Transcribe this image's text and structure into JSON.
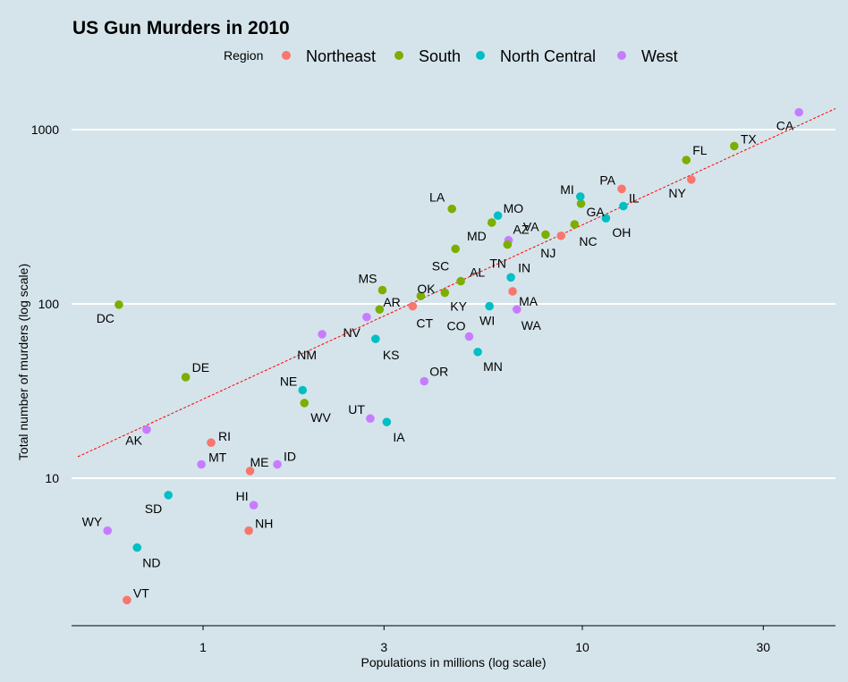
{
  "chart_data": {
    "type": "scatter",
    "title": "US Gun Murders in 2010",
    "xlabel": "Populations in millions (log scale)",
    "ylabel": "Total number of murders (log scale)",
    "x_scale": "log10",
    "y_scale": "log10",
    "xlim": [
      0.43,
      47
    ],
    "ylim": [
      1.5,
      2200
    ],
    "x_ticks": [
      {
        "value": 1,
        "label": "1"
      },
      {
        "value": 3,
        "label": "3"
      },
      {
        "value": 10,
        "label": "10"
      },
      {
        "value": 30,
        "label": "30"
      }
    ],
    "y_ticks": [
      {
        "value": 10,
        "label": "10"
      },
      {
        "value": 100,
        "label": "100"
      },
      {
        "value": 1000,
        "label": "1000"
      }
    ],
    "grid": true,
    "legend": {
      "title": "Region",
      "placement": "top",
      "entries": [
        {
          "name": "Northeast",
          "color": "#f8766d"
        },
        {
          "name": "South",
          "color": "#7cae00"
        },
        {
          "name": "North Central",
          "color": "#00bfc4"
        },
        {
          "name": "West",
          "color": "#c77cff"
        }
      ]
    },
    "reference_line": {
      "type": "dashed",
      "color": "#ff0000",
      "slope_loglog": 1,
      "intercept_rate_per_million": 28.4
    },
    "points": [
      {
        "abb": "AL",
        "x": 4.78,
        "y": 135,
        "region": "South"
      },
      {
        "abb": "AK",
        "x": 0.71,
        "y": 19,
        "region": "West"
      },
      {
        "abb": "AZ",
        "x": 6.39,
        "y": 232,
        "region": "West"
      },
      {
        "abb": "AR",
        "x": 2.92,
        "y": 93,
        "region": "South"
      },
      {
        "abb": "CA",
        "x": 37.25,
        "y": 1257,
        "region": "West"
      },
      {
        "abb": "CO",
        "x": 5.03,
        "y": 65,
        "region": "West"
      },
      {
        "abb": "CT",
        "x": 3.57,
        "y": 97,
        "region": "Northeast"
      },
      {
        "abb": "DE",
        "x": 0.9,
        "y": 38,
        "region": "South"
      },
      {
        "abb": "DC",
        "x": 0.6,
        "y": 99,
        "region": "South"
      },
      {
        "abb": "FL",
        "x": 18.8,
        "y": 669,
        "region": "South"
      },
      {
        "abb": "GA",
        "x": 9.92,
        "y": 376,
        "region": "South"
      },
      {
        "abb": "HI",
        "x": 1.36,
        "y": 7,
        "region": "West"
      },
      {
        "abb": "ID",
        "x": 1.57,
        "y": 12,
        "region": "West"
      },
      {
        "abb": "IL",
        "x": 12.83,
        "y": 364,
        "region": "North Central"
      },
      {
        "abb": "IN",
        "x": 6.48,
        "y": 142,
        "region": "North Central"
      },
      {
        "abb": "IA",
        "x": 3.05,
        "y": 21,
        "region": "North Central"
      },
      {
        "abb": "KS",
        "x": 2.85,
        "y": 63,
        "region": "North Central"
      },
      {
        "abb": "KY",
        "x": 4.34,
        "y": 116,
        "region": "South"
      },
      {
        "abb": "LA",
        "x": 4.53,
        "y": 351,
        "region": "South"
      },
      {
        "abb": "ME",
        "x": 1.33,
        "y": 11,
        "region": "Northeast"
      },
      {
        "abb": "MD",
        "x": 5.77,
        "y": 293,
        "region": "South"
      },
      {
        "abb": "MA",
        "x": 6.55,
        "y": 118,
        "region": "Northeast"
      },
      {
        "abb": "MI",
        "x": 9.88,
        "y": 413,
        "region": "North Central"
      },
      {
        "abb": "MN",
        "x": 5.3,
        "y": 53,
        "region": "North Central"
      },
      {
        "abb": "MS",
        "x": 2.97,
        "y": 120,
        "region": "South"
      },
      {
        "abb": "MO",
        "x": 5.99,
        "y": 321,
        "region": "North Central"
      },
      {
        "abb": "MT",
        "x": 0.99,
        "y": 12,
        "region": "West"
      },
      {
        "abb": "NE",
        "x": 1.83,
        "y": 32,
        "region": "North Central"
      },
      {
        "abb": "NV",
        "x": 2.7,
        "y": 84,
        "region": "West"
      },
      {
        "abb": "NH",
        "x": 1.32,
        "y": 5,
        "region": "Northeast"
      },
      {
        "abb": "NJ",
        "x": 8.79,
        "y": 246,
        "region": "Northeast"
      },
      {
        "abb": "NM",
        "x": 2.06,
        "y": 67,
        "region": "West"
      },
      {
        "abb": "NY",
        "x": 19.38,
        "y": 517,
        "region": "Northeast"
      },
      {
        "abb": "NC",
        "x": 9.54,
        "y": 286,
        "region": "South"
      },
      {
        "abb": "ND",
        "x": 0.67,
        "y": 4,
        "region": "North Central"
      },
      {
        "abb": "OH",
        "x": 11.54,
        "y": 310,
        "region": "North Central"
      },
      {
        "abb": "OK",
        "x": 3.75,
        "y": 111,
        "region": "South"
      },
      {
        "abb": "OR",
        "x": 3.83,
        "y": 36,
        "region": "West"
      },
      {
        "abb": "PA",
        "x": 12.7,
        "y": 457,
        "region": "Northeast"
      },
      {
        "abb": "RI",
        "x": 1.05,
        "y": 16,
        "region": "Northeast"
      },
      {
        "abb": "SC",
        "x": 4.63,
        "y": 207,
        "region": "South"
      },
      {
        "abb": "SD",
        "x": 0.81,
        "y": 8,
        "region": "North Central"
      },
      {
        "abb": "TN",
        "x": 6.35,
        "y": 219,
        "region": "South"
      },
      {
        "abb": "TX",
        "x": 25.15,
        "y": 805,
        "region": "South"
      },
      {
        "abb": "UT",
        "x": 2.76,
        "y": 22,
        "region": "West"
      },
      {
        "abb": "VT",
        "x": 0.63,
        "y": 2,
        "region": "Northeast"
      },
      {
        "abb": "VA",
        "x": 8.0,
        "y": 250,
        "region": "South"
      },
      {
        "abb": "WA",
        "x": 6.72,
        "y": 93,
        "region": "West"
      },
      {
        "abb": "WV",
        "x": 1.85,
        "y": 27,
        "region": "South"
      },
      {
        "abb": "WI",
        "x": 5.69,
        "y": 97,
        "region": "North Central"
      },
      {
        "abb": "WY",
        "x": 0.56,
        "y": 5,
        "region": "West"
      }
    ]
  }
}
